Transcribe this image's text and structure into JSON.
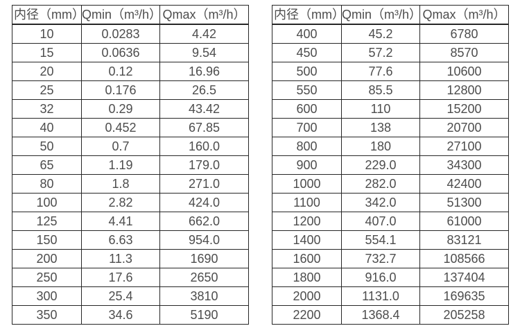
{
  "page": {
    "background": "#ffffff",
    "text_color": "#4d4d4d",
    "border_color": "#262626"
  },
  "chart_data": [
    {
      "type": "table",
      "title": "",
      "columns": [
        "内径（mm）",
        "Qmin（m³/h）",
        "Qmax（m³/h）"
      ],
      "rows": [
        [
          "10",
          "0.0283",
          "4.42"
        ],
        [
          "15",
          "0.0636",
          "9.54"
        ],
        [
          "20",
          "0.12",
          "16.96"
        ],
        [
          "25",
          "0.176",
          "26.5"
        ],
        [
          "32",
          "0.29",
          "43.42"
        ],
        [
          "40",
          "0.452",
          "67.85"
        ],
        [
          "50",
          "0.7",
          "160.0"
        ],
        [
          "65",
          "1.19",
          "179.0"
        ],
        [
          "80",
          "1.8",
          "271.0"
        ],
        [
          "100",
          "2.82",
          "424.0"
        ],
        [
          "125",
          "4.41",
          "662.0"
        ],
        [
          "150",
          "6.63",
          "954.0"
        ],
        [
          "200",
          "11.3",
          "1690"
        ],
        [
          "250",
          "17.6",
          "2650"
        ],
        [
          "300",
          "25.4",
          "3810"
        ],
        [
          "350",
          "34.6",
          "5190"
        ]
      ]
    },
    {
      "type": "table",
      "title": "",
      "columns": [
        "内径（mm）",
        "Qmin（m³/h）",
        "Qmax（m³/h）"
      ],
      "rows": [
        [
          "400",
          "45.2",
          "6780"
        ],
        [
          "450",
          "57.2",
          "8570"
        ],
        [
          "500",
          "77.6",
          "10600"
        ],
        [
          "550",
          "85.5",
          "12800"
        ],
        [
          "600",
          "110",
          "15200"
        ],
        [
          "700",
          "138",
          "20700"
        ],
        [
          "800",
          "180",
          "27100"
        ],
        [
          "900",
          "229.0",
          "34300"
        ],
        [
          "1000",
          "282.0",
          "42400"
        ],
        [
          "1100",
          "342.0",
          "51300"
        ],
        [
          "1200",
          "407.0",
          "61000"
        ],
        [
          "1400",
          "554.1",
          "83121"
        ],
        [
          "1600",
          "732.7",
          "108566"
        ],
        [
          "1800",
          "916.0",
          "137404"
        ],
        [
          "2000",
          "1131.0",
          "169635"
        ],
        [
          "2200",
          "1368.4",
          "205258"
        ]
      ]
    }
  ]
}
